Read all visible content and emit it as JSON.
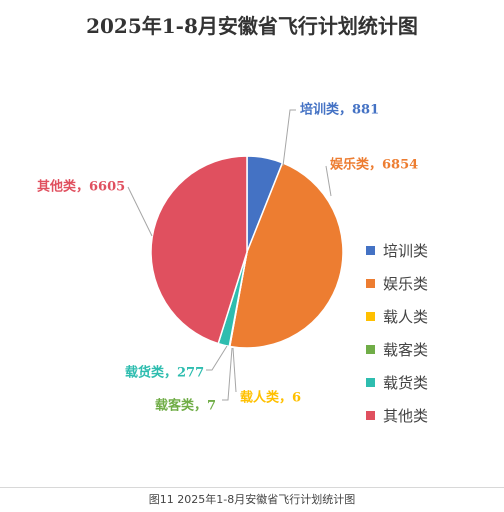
{
  "chart_data": {
    "type": "pie",
    "title": "2025年1-8月安徽省飞行计划统计图",
    "categories": [
      "培训类",
      "娱乐类",
      "载人类",
      "载客类",
      "载货类",
      "其他类"
    ],
    "values": [
      881,
      6854,
      6,
      7,
      277,
      6605
    ],
    "colors": [
      "#4472C4",
      "#ED7D31",
      "#FFC000",
      "#70AD47",
      "#2EBDAF",
      "#E0505F"
    ],
    "data_labels": [
      "培训类，881",
      "娱乐类，6854",
      "载人类，6",
      "载客类，7",
      "载货类，277",
      "其他类，6605"
    ],
    "legend_position": "right"
  },
  "caption": "图11 2025年1-8月安徽省飞行计划统计图"
}
